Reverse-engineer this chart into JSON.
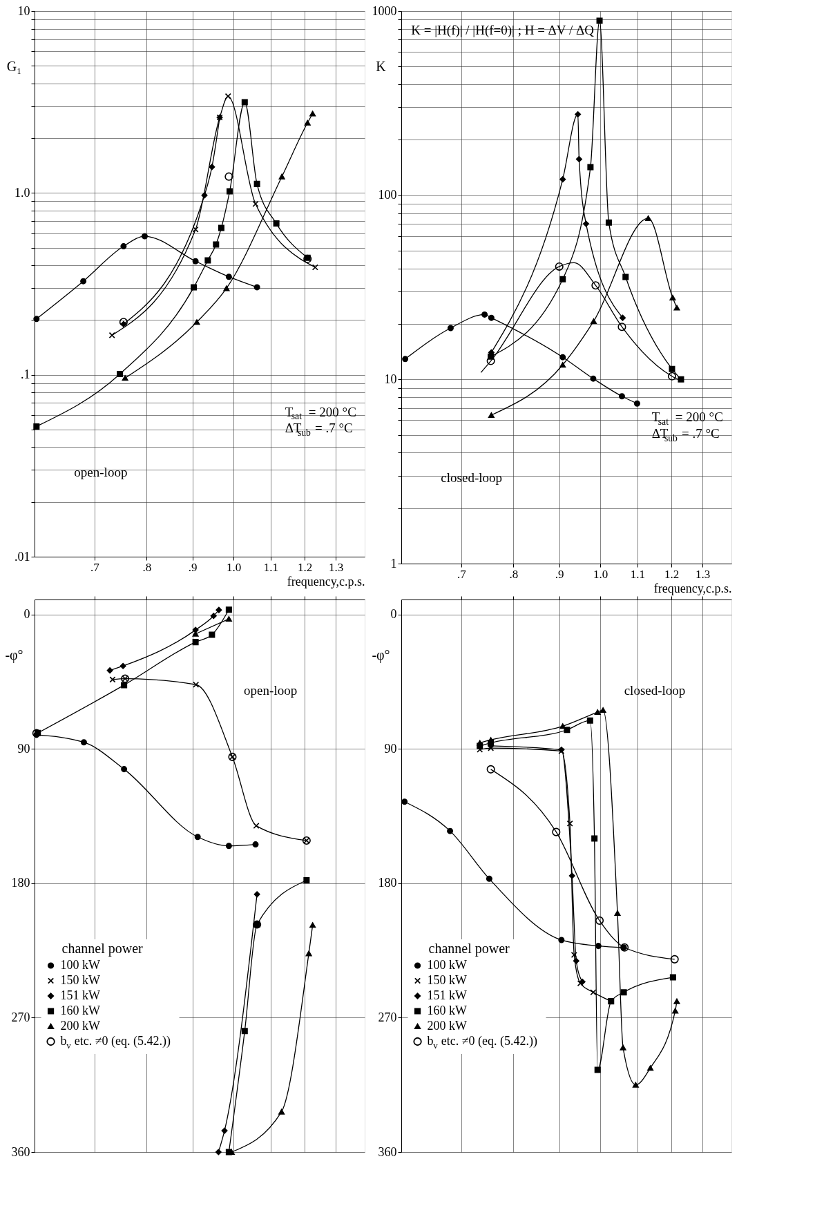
{
  "chart_data": [
    {
      "type": "line",
      "xlabel": "frequency,c.p.s.",
      "ylabel": "G₁",
      "log": "xy",
      "grid": true,
      "legend": false,
      "xlim": [
        0.6,
        1.4
      ],
      "xticks": [
        {
          "value": 0.7,
          "label": ".7"
        },
        {
          "value": 0.8,
          "label": ".8"
        },
        {
          "value": 0.9,
          "label": ".9"
        },
        {
          "value": 1,
          "label": "1.0"
        },
        1.1,
        1.2,
        1.3
      ],
      "ylim": [
        0.01,
        10
      ],
      "yticks": [
        {
          "value": 0.01,
          "label": ".01"
        },
        {
          "value": 0.02,
          "label": null
        },
        {
          "value": 0.03,
          "label": null
        },
        {
          "value": 0.04,
          "label": null
        },
        {
          "value": 0.05,
          "label": null
        },
        {
          "value": 0.06,
          "label": null
        },
        {
          "value": 0.07,
          "label": null
        },
        {
          "value": 0.08,
          "label": null
        },
        {
          "value": 0.09,
          "label": null
        },
        {
          "value": 0.1,
          "label": ".1"
        },
        {
          "value": 0.2,
          "label": null
        },
        {
          "value": 0.3,
          "label": null
        },
        {
          "value": 0.4,
          "label": null
        },
        {
          "value": 0.5,
          "label": null
        },
        {
          "value": 0.6,
          "label": null
        },
        {
          "value": 0.7,
          "label": null
        },
        {
          "value": 0.8,
          "label": null
        },
        {
          "value": 0.9,
          "label": null
        },
        {
          "value": 1,
          "label": "1.0"
        },
        {
          "value": 2,
          "label": null
        },
        {
          "value": 3,
          "label": null
        },
        {
          "value": 4,
          "label": null
        },
        {
          "value": 5,
          "label": null
        },
        {
          "value": 6,
          "label": null
        },
        {
          "value": 7,
          "label": null
        },
        {
          "value": 8,
          "label": null
        },
        {
          "value": 9,
          "label": null
        },
        10
      ],
      "annotations": [
        "T$_{sat}$ = 200 °C",
        "ΔT$_{sub}$ = .7 °C",
        "open-loop"
      ],
      "series": [
        {
          "color": "#000000",
          "marker": "circle",
          "x": [
            0.603,
            0.68,
            0.754,
            0.796,
            0.907,
            0.988,
            1.062
          ],
          "values": [
            0.203,
            0.327,
            0.509,
            0.578,
            0.421,
            0.346,
            0.303
          ]
        },
        {
          "color": "#000000",
          "marker": "cross",
          "x": [
            0.732,
            0.907,
            0.965,
            0.986,
            1.058,
            1.233
          ],
          "values": [
            0.165,
            0.63,
            2.6,
            3.4,
            0.87,
            0.39
          ]
        },
        {
          "color": "#000000",
          "marker": "diamond",
          "x": [
            0.754,
            0.928,
            0.946,
            0.965
          ],
          "values": [
            0.19,
            0.97,
            1.39,
            2.6
          ]
        },
        {
          "color": "#000000",
          "marker": "square",
          "x": [
            0.603,
            0.747,
            0.903,
            0.936,
            0.956,
            0.969,
            0.99,
            1.029,
            1.062,
            1.116,
            1.209
          ],
          "values": [
            0.052,
            0.101,
            0.303,
            0.426,
            0.521,
            0.642,
            1.02,
            3.15,
            1.12,
            0.679,
            0.44
          ]
        },
        {
          "color": "#000000",
          "marker": "triangle",
          "x": [
            0.757,
            0.91,
            0.982,
            1.132,
            1.209,
            1.225
          ],
          "values": [
            0.096,
            0.195,
            0.299,
            1.23,
            2.43,
            2.73
          ]
        },
        {
          "type": "scatter",
          "color": "#000000",
          "marker": "circle",
          "x": [
            0.754,
            0.988,
            1.209
          ],
          "values": [
            0.195,
            1.23,
            0.434
          ]
        }
      ]
    },
    {
      "type": "line",
      "xlabel": "frequency,c.p.s.",
      "ylabel": "K",
      "log": "xy",
      "grid": true,
      "legend": false,
      "xlim": [
        0.6,
        1.4
      ],
      "xticks": [
        {
          "value": 0.7,
          "label": ".7"
        },
        {
          "value": 0.8,
          "label": ".8"
        },
        {
          "value": 0.9,
          "label": ".9"
        },
        {
          "value": 1,
          "label": "1.0"
        },
        1.1,
        1.2,
        1.3
      ],
      "ylim": [
        1,
        1000
      ],
      "yticks": [
        1,
        {
          "value": 2,
          "label": null
        },
        {
          "value": 3,
          "label": null
        },
        {
          "value": 4,
          "label": null
        },
        {
          "value": 5,
          "label": null
        },
        {
          "value": 6,
          "label": null
        },
        {
          "value": 7,
          "label": null
        },
        {
          "value": 8,
          "label": null
        },
        {
          "value": 9,
          "label": null
        },
        10,
        {
          "value": 20,
          "label": null
        },
        {
          "value": 30,
          "label": null
        },
        {
          "value": 40,
          "label": null
        },
        {
          "value": 50,
          "label": null
        },
        {
          "value": 60,
          "label": null
        },
        {
          "value": 70,
          "label": null
        },
        {
          "value": 80,
          "label": null
        },
        {
          "value": 90,
          "label": null
        },
        100,
        {
          "value": 200,
          "label": null
        },
        {
          "value": 300,
          "label": null
        },
        {
          "value": 400,
          "label": null
        },
        {
          "value": 500,
          "label": null
        },
        {
          "value": 600,
          "label": null
        },
        {
          "value": 700,
          "label": null
        },
        {
          "value": 800,
          "label": null
        },
        {
          "value": 900,
          "label": null
        },
        1000
      ],
      "annotations": [
        "K = |H(f)| / |H(f=0)| ; H = ΔV / ΔQ",
        "T$_{sat}$ = 200 °C",
        "ΔT$_{sub}$ = .7 °C",
        "closed-loop"
      ],
      "series": [
        {
          "color": "#000000",
          "marker": "circle",
          "x": [
            0.606,
            0.681,
            0.743,
            0.756,
            0.908,
            0.982,
            1.057,
            1.099
          ],
          "values": [
            12.9,
            19,
            22.5,
            21.6,
            13.2,
            10.1,
            8.1,
            7.4
          ]
        },
        {
          "color": "#000000",
          "marker": "none",
          "x": [
            0.736,
            0.755,
            0.9,
            0.935,
            0.988,
            1.057,
            1.202,
            1.226
          ],
          "values": [
            10.9,
            12.6,
            41,
            43,
            32.4,
            19.3,
            10.4,
            9.9
          ]
        },
        {
          "color": "#000000",
          "marker": "diamond",
          "x": [
            0.756,
            0.908,
            0.944,
            0.947,
            0.964,
            1.059
          ],
          "values": [
            14,
            122,
            275,
            157,
            70,
            21.6
          ]
        },
        {
          "color": "#000000",
          "marker": "square",
          "x": [
            0.755,
            0.908,
            0.975,
            0.998,
            1.022,
            1.067,
            1.202,
            1.23
          ],
          "values": [
            13.3,
            35,
            142,
            887,
            71,
            36,
            11.4,
            10
          ]
        },
        {
          "color": "#000000",
          "marker": "triangle",
          "x": [
            0.756,
            0.908,
            0.983,
            1.131,
            1.204,
            1.217
          ],
          "values": [
            6.4,
            12,
            20.7,
            75,
            27.8,
            24.5
          ]
        },
        {
          "type": "scatter",
          "color": "#000000",
          "marker": "circle",
          "x": [
            0.755,
            0.9,
            0.988,
            1.057,
            1.202
          ],
          "values": [
            12.6,
            41,
            32.4,
            19.3,
            10.4
          ]
        }
      ]
    },
    {
      "type": "line",
      "ylabel": "-φ°",
      "log": "x",
      "grid": true,
      "legend": "bottom left",
      "legend_title": "channel power",
      "tick_labels": "y",
      "xlim": [
        0.6,
        1.4
      ],
      "xticks": [
        0.7,
        0.8,
        0.9,
        1,
        1.1,
        1.2,
        1.3
      ],
      "ylim": [
        360,
        -10
      ],
      "yticks": [
        0,
        90,
        180,
        270,
        360
      ],
      "annotations": [
        "open-loop"
      ],
      "series": [
        {
          "name": "100 kW",
          "color": "#000000",
          "marker": "circle",
          "x": [
            0.603,
            0.681,
            0.755,
            0.912,
            0.988,
            1.058
          ],
          "values": [
            80.6,
            85.6,
            103.6,
            149,
            155,
            154
          ]
        },
        {
          "name": "150 kW",
          "color": "#000000",
          "marker": "cross",
          "x": [
            0.733,
            0.757,
            0.908,
            0.997,
            1.06,
            1.206
          ],
          "values": [
            43.6,
            43,
            47,
            95.4,
            141.5,
            151.4
          ]
        },
        {
          "name": "151 kW",
          "color": "#000000",
          "marker": "diamond",
          "x": [
            0.728,
            0.753,
            0.907,
            0.95,
            0.963,
            null,
            0.962,
            0.977,
            1.062
          ],
          "values": [
            37.5,
            34.5,
            10.4,
            1,
            -3,
            null,
            360,
            345.7,
            187.4
          ]
        },
        {
          "name": "160 kW",
          "color": "#000000",
          "marker": "square",
          "x": [
            0.605,
            0.755,
            0.907,
            0.946,
            0.988,
            null,
            0.988,
            1.029,
            1.062,
            1.206
          ],
          "values": [
            79.4,
            47.3,
            18.5,
            13.6,
            -3.2,
            null,
            360,
            279,
            207.6,
            178
          ]
        },
        {
          "name": "200 kW",
          "color": "#000000",
          "marker": "triangle",
          "x": [
            0.907,
            0.988,
            null,
            0.995,
            1.131,
            1.213,
            1.225
          ],
          "values": [
            13,
            3,
            null,
            360,
            333,
            227,
            208
          ]
        },
        {
          "type": "scatter",
          "name": "b$_{v}$ etc. ≠0 (eq. (5.42.))",
          "color": "#000000",
          "marker": "circle",
          "x": [
            0.603,
            0.757,
            0.997,
            1.206,
            1.062
          ],
          "values": [
            79.5,
            43,
            95.4,
            151.4,
            207.6
          ]
        }
      ]
    },
    {
      "type": "line",
      "ylabel": "-φ°",
      "log": "x",
      "grid": true,
      "legend": "bottom left",
      "legend_title": "channel power",
      "tick_labels": "y",
      "xlim": [
        0.6,
        1.4
      ],
      "xticks": [
        0.7,
        0.8,
        0.9,
        1,
        1.1,
        1.2,
        1.3
      ],
      "ylim": [
        360,
        -10
      ],
      "yticks": [
        0,
        90,
        180,
        270,
        360
      ],
      "annotations": [
        "closed-loop"
      ],
      "series": [
        {
          "name": "100 kW",
          "color": "#000000",
          "marker": "circle",
          "x": [
            0.605,
            0.68,
            0.752,
            0.905,
            0.995,
            1.062
          ],
          "values": [
            125.4,
            145,
            177,
            218,
            222,
            223
          ]
        },
        {
          "name": "150 kW",
          "color": "#000000",
          "marker": "cross",
          "x": [
            0.734,
            0.755,
            0.905,
            0.925,
            0.935,
            0.95,
            0.982,
            1.028
          ],
          "values": [
            90.5,
            89.5,
            91.5,
            140,
            228,
            247,
            253,
            259
          ]
        },
        {
          "name": "151 kW",
          "color": "#000000",
          "marker": "diamond",
          "x": [
            0.755,
            0.905,
            0.93,
            0.94,
            0.955
          ],
          "values": [
            88,
            90.6,
            175,
            232,
            246
          ]
        },
        {
          "name": "160 kW",
          "color": "#000000",
          "marker": "square",
          "x": [
            0.734,
            0.755,
            0.918,
            0.974,
            0.985,
            0.993,
            1.028,
            1.062,
            1.205
          ],
          "values": [
            88,
            86,
            77.3,
            71,
            150,
            305,
            259,
            253,
            243
          ]
        },
        {
          "name": "200 kW",
          "color": "#000000",
          "marker": "triangle",
          "x": [
            0.734,
            0.755,
            0.908,
            0.993,
            1.007,
            1.045,
            1.06,
            1.095,
            1.137,
            1.212,
            1.217
          ],
          "values": [
            86,
            84,
            74.8,
            65.4,
            64,
            200,
            290,
            315,
            303.7,
            265.4,
            259
          ]
        },
        {
          "color": "#000000",
          "marker": "none",
          "x": [
            0.755,
            0.893,
            0.998,
            1.064,
            1.21
          ],
          "values": [
            103.7,
            145.7,
            205,
            223,
            230.9
          ]
        },
        {
          "type": "scatter",
          "name": "b$_{v}$ etc. ≠0 (eq. (5.42.))",
          "color": "#000000",
          "marker": "circle",
          "x": [
            0.755,
            0.893,
            0.998,
            1.064,
            1.21
          ],
          "values": [
            103.7,
            145.7,
            205,
            223,
            230.9
          ]
        }
      ]
    }
  ]
}
